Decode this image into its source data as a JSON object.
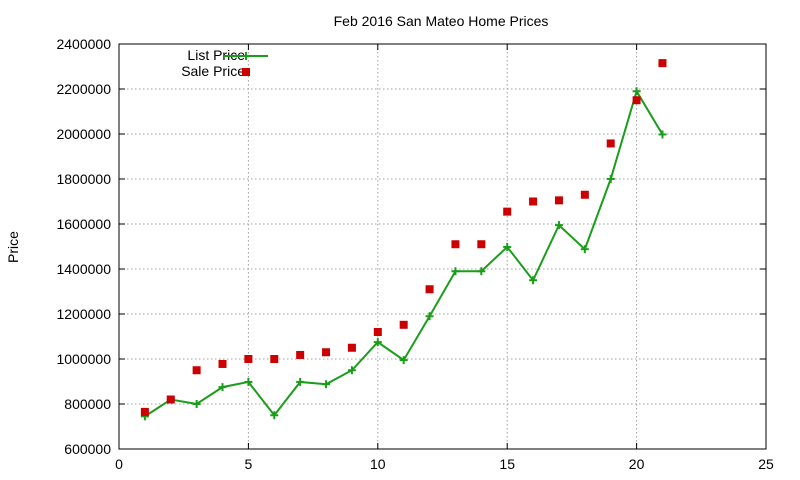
{
  "chart_data": {
    "type": "scatter",
    "title": "Feb 2016 San Mateo Home Prices",
    "xlabel": "",
    "ylabel": "Price",
    "xlim": [
      0,
      25
    ],
    "ylim": [
      600000,
      2400000
    ],
    "xticks": [
      0,
      5,
      10,
      15,
      20,
      25
    ],
    "yticks": [
      600000,
      800000,
      1000000,
      1200000,
      1400000,
      1600000,
      1800000,
      2000000,
      2200000,
      2400000
    ],
    "grid": true,
    "legend_position": "top-left",
    "series": [
      {
        "name": "List Price",
        "style": "linespoints",
        "marker": "plus",
        "color": "#1a9e1a",
        "x": [
          1,
          2,
          3,
          4,
          5,
          6,
          7,
          8,
          9,
          10,
          11,
          12,
          13,
          14,
          15,
          16,
          17,
          18,
          19,
          20,
          21
        ],
        "y": [
          745000,
          820000,
          800000,
          875000,
          898000,
          750000,
          898000,
          888000,
          950000,
          1075000,
          995000,
          1190000,
          1390000,
          1390000,
          1498000,
          1350000,
          1595000,
          1488000,
          1800000,
          2190000,
          1998000
        ]
      },
      {
        "name": "Sale Price",
        "style": "points",
        "marker": "square",
        "color": "#cc0000",
        "x": [
          1,
          2,
          3,
          4,
          5,
          6,
          7,
          8,
          9,
          10,
          11,
          12,
          13,
          14,
          15,
          16,
          17,
          18,
          19,
          20,
          21
        ],
        "y": [
          765000,
          820000,
          950000,
          978000,
          1000000,
          1000000,
          1018000,
          1030000,
          1050000,
          1120000,
          1152000,
          1310000,
          1510000,
          1510000,
          1655000,
          1700000,
          1705000,
          1730000,
          1958000,
          2150000,
          2315000
        ]
      }
    ]
  }
}
